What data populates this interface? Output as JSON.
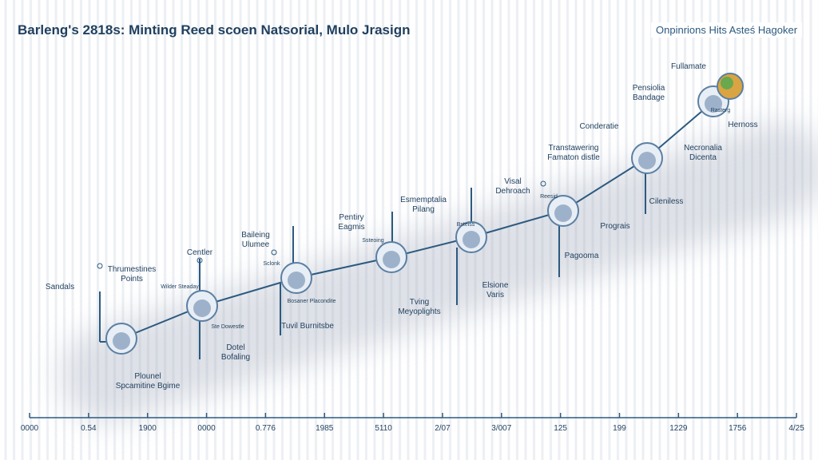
{
  "title": "Barleng's 2818s: Minting Reed scoen Natsorial, Mulo Jrasign",
  "top_right_label": "Onpinrions Hits Asteś Hagoker",
  "colors": {
    "line": "#2c5a80",
    "text": "#1f3f5e",
    "band": "#a0aab9",
    "accent_node": "#6aa84f"
  },
  "axis_ticks": [
    "0000",
    "0.54",
    "1900",
    "0000",
    "0.776",
    "1985",
    "5110",
    "2/07",
    "3/007",
    "125",
    "199",
    "1229",
    "1756",
    "4/25"
  ],
  "labels": [
    [
      "Sandals"
    ],
    [
      "Thrumestines",
      "Points"
    ],
    [
      "Centler"
    ],
    [
      "Baileing",
      "Ulumee"
    ],
    [
      "Pentiry",
      "Eagmis"
    ],
    [
      "Esmemptalia",
      "Pilang"
    ],
    [
      "Visal",
      "Dehroach"
    ],
    [
      "Transtawering",
      "Famaton distle"
    ],
    [
      "Conderatie"
    ],
    [
      "Pensiolia",
      "Bandage"
    ],
    [
      "Fullamate"
    ],
    [
      "Hernoss"
    ],
    [
      "Necronalia",
      "Dicenta"
    ],
    [
      "Cileniless"
    ],
    [
      "Prograis"
    ],
    [
      "Pagooma"
    ],
    [
      "Elsione",
      "Varis"
    ],
    [
      "Tving",
      "Meyoplights"
    ],
    [
      "Tuvil Burnitsbe"
    ],
    [
      "Dotel",
      "Bofaling"
    ],
    [
      "Plounel",
      "Spcamitine Bgime"
    ]
  ],
  "small_labels": [
    "Wilder Steaday",
    "Ste Dowestle",
    "Sclonk",
    "Bosaner Placondite",
    "Ssteoing",
    "Bsteiss",
    "Reesid",
    "Rasterg"
  ]
}
